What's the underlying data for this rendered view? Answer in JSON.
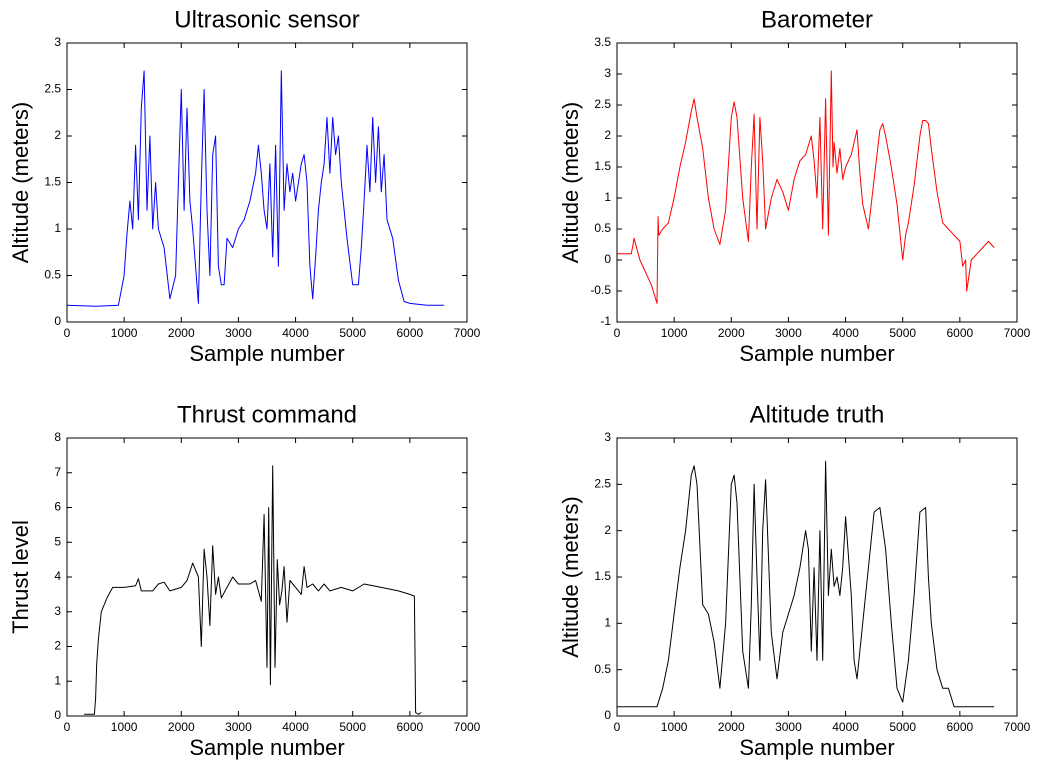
{
  "chart_data": [
    {
      "type": "line",
      "title": "Ultrasonic sensor",
      "xlabel": "Sample number",
      "ylabel": "Altitude (meters)",
      "xlim": [
        0,
        7000
      ],
      "xticks": [
        0,
        1000,
        2000,
        3000,
        4000,
        5000,
        6000,
        7000
      ],
      "ylim": [
        0,
        3
      ],
      "yticks": [
        0,
        0.5,
        1,
        1.5,
        2,
        2.5,
        3
      ],
      "x": [
        0,
        500,
        900,
        1000,
        1050,
        1100,
        1150,
        1200,
        1250,
        1300,
        1350,
        1400,
        1450,
        1500,
        1550,
        1600,
        1700,
        1800,
        1900,
        1950,
        2000,
        2050,
        2100,
        2150,
        2200,
        2300,
        2350,
        2400,
        2450,
        2500,
        2550,
        2600,
        2650,
        2700,
        2750,
        2800,
        2900,
        3000,
        3100,
        3200,
        3300,
        3350,
        3400,
        3450,
        3500,
        3550,
        3600,
        3650,
        3700,
        3750,
        3800,
        3850,
        3900,
        3950,
        4000,
        4100,
        4150,
        4200,
        4250,
        4300,
        4350,
        4400,
        4450,
        4500,
        4550,
        4600,
        4650,
        4700,
        4750,
        4800,
        4900,
        5000,
        5100,
        5150,
        5200,
        5250,
        5300,
        5350,
        5400,
        5450,
        5500,
        5550,
        5600,
        5700,
        5800,
        5900,
        6000,
        6300,
        6600
      ],
      "series": [
        {
          "color": "#0000ff",
          "values": [
            0.18,
            0.17,
            0.18,
            0.5,
            0.95,
            1.3,
            1.0,
            1.9,
            1.1,
            2.3,
            2.7,
            1.2,
            2.0,
            1.0,
            1.5,
            1.0,
            0.8,
            0.25,
            0.5,
            1.5,
            2.5,
            1.2,
            2.3,
            1.3,
            1.0,
            0.2,
            1.5,
            2.5,
            1.2,
            0.5,
            1.8,
            2.0,
            0.6,
            0.4,
            0.4,
            0.9,
            0.8,
            1.0,
            1.1,
            1.3,
            1.6,
            1.9,
            1.6,
            1.2,
            1.0,
            1.7,
            0.7,
            1.9,
            0.6,
            2.7,
            1.2,
            1.7,
            1.4,
            1.6,
            1.3,
            1.7,
            1.8,
            1.5,
            0.6,
            0.25,
            0.7,
            1.2,
            1.5,
            1.7,
            2.2,
            1.6,
            2.2,
            1.8,
            2.0,
            1.5,
            0.9,
            0.4,
            0.4,
            0.8,
            1.3,
            1.9,
            1.4,
            2.2,
            1.5,
            2.1,
            1.4,
            1.8,
            1.1,
            0.9,
            0.45,
            0.22,
            0.2,
            0.18,
            0.18
          ]
        }
      ]
    },
    {
      "type": "line",
      "title": "Barometer",
      "xlabel": "Sample number",
      "ylabel": "Altitude (meters)",
      "xlim": [
        0,
        7000
      ],
      "xticks": [
        0,
        1000,
        2000,
        3000,
        4000,
        5000,
        6000,
        7000
      ],
      "ylim": [
        -1,
        3.5
      ],
      "yticks": [
        -1,
        -0.5,
        0,
        0.5,
        1,
        1.5,
        2,
        2.5,
        3,
        3.5
      ],
      "x": [
        0,
        250,
        300,
        400,
        500,
        600,
        700,
        720,
        730,
        800,
        900,
        1000,
        1100,
        1200,
        1300,
        1350,
        1400,
        1500,
        1600,
        1700,
        1800,
        1900,
        2000,
        2050,
        2100,
        2200,
        2300,
        2350,
        2400,
        2450,
        2500,
        2550,
        2600,
        2700,
        2800,
        2900,
        3000,
        3100,
        3200,
        3300,
        3400,
        3450,
        3500,
        3550,
        3600,
        3650,
        3700,
        3750,
        3780,
        3800,
        3850,
        3900,
        3950,
        4000,
        4100,
        4200,
        4250,
        4300,
        4400,
        4500,
        4600,
        4650,
        4700,
        4800,
        4900,
        5000,
        5050,
        5100,
        5200,
        5300,
        5350,
        5400,
        5450,
        5500,
        5600,
        5700,
        5800,
        5900,
        6000,
        6050,
        6100,
        6120,
        6200,
        6300,
        6400,
        6500,
        6600
      ],
      "series": [
        {
          "color": "#ff0000",
          "values": [
            0.1,
            0.1,
            0.35,
            0.0,
            -0.2,
            -0.4,
            -0.7,
            0.7,
            0.4,
            0.5,
            0.6,
            1.0,
            1.5,
            1.9,
            2.4,
            2.6,
            2.3,
            1.8,
            1.0,
            0.5,
            0.25,
            0.8,
            2.3,
            2.55,
            2.3,
            1.0,
            0.3,
            1.5,
            2.35,
            0.5,
            2.3,
            1.6,
            0.5,
            1.0,
            1.3,
            1.1,
            0.8,
            1.3,
            1.6,
            1.7,
            2.0,
            1.6,
            1.0,
            2.3,
            0.5,
            2.6,
            0.4,
            3.05,
            1.5,
            1.9,
            1.4,
            1.8,
            1.3,
            1.5,
            1.7,
            2.1,
            1.4,
            0.9,
            0.5,
            1.3,
            2.1,
            2.2,
            2.0,
            1.5,
            0.9,
            0.0,
            0.4,
            0.6,
            1.2,
            2.0,
            2.25,
            2.25,
            2.2,
            1.8,
            1.1,
            0.6,
            0.5,
            0.4,
            0.3,
            -0.1,
            0.0,
            -0.5,
            0.0,
            0.1,
            0.2,
            0.3,
            0.2
          ]
        }
      ]
    },
    {
      "type": "line",
      "title": "Thrust command",
      "xlabel": "Sample number",
      "ylabel": "Thrust level",
      "xlim": [
        0,
        7000
      ],
      "xticks": [
        0,
        1000,
        2000,
        3000,
        4000,
        5000,
        6000,
        7000
      ],
      "ylim": [
        0,
        8
      ],
      "yticks": [
        0,
        1,
        2,
        3,
        4,
        5,
        6,
        7,
        8
      ],
      "x": [
        300,
        480,
        500,
        520,
        550,
        600,
        700,
        800,
        900,
        1000,
        1200,
        1250,
        1300,
        1500,
        1600,
        1700,
        1800,
        2000,
        2100,
        2200,
        2300,
        2350,
        2400,
        2450,
        2500,
        2550,
        2600,
        2650,
        2700,
        2800,
        2900,
        3000,
        3200,
        3300,
        3400,
        3450,
        3500,
        3530,
        3560,
        3600,
        3640,
        3680,
        3720,
        3760,
        3800,
        3850,
        3900,
        4000,
        4100,
        4150,
        4200,
        4300,
        4400,
        4500,
        4600,
        4800,
        5000,
        5200,
        5500,
        5800,
        6000,
        6080,
        6100,
        6150,
        6200
      ],
      "series": [
        {
          "color": "#000000",
          "values": [
            0.05,
            0.05,
            0.5,
            1.5,
            2.2,
            3.0,
            3.4,
            3.7,
            3.7,
            3.7,
            3.75,
            3.95,
            3.6,
            3.6,
            3.8,
            3.85,
            3.6,
            3.7,
            3.9,
            4.4,
            4.0,
            2.0,
            4.8,
            4.0,
            2.6,
            4.9,
            3.5,
            4.0,
            3.4,
            3.7,
            4.0,
            3.8,
            3.8,
            3.9,
            3.3,
            5.8,
            1.4,
            6.0,
            0.9,
            7.2,
            1.4,
            4.5,
            3.2,
            3.6,
            4.3,
            2.7,
            3.9,
            3.7,
            3.5,
            4.3,
            3.7,
            3.8,
            3.6,
            3.8,
            3.6,
            3.7,
            3.6,
            3.8,
            3.7,
            3.6,
            3.5,
            3.45,
            0.1,
            0.05,
            0.1
          ]
        }
      ]
    },
    {
      "type": "line",
      "title": "Altitude truth",
      "xlabel": "Sample number",
      "ylabel": "Altitude (meters)",
      "xlim": [
        0,
        7000
      ],
      "xticks": [
        0,
        1000,
        2000,
        3000,
        4000,
        5000,
        6000,
        7000
      ],
      "ylim": [
        0,
        3
      ],
      "yticks": [
        0,
        0.5,
        1,
        1.5,
        2,
        2.5,
        3
      ],
      "x": [
        0,
        700,
        800,
        900,
        1000,
        1100,
        1200,
        1300,
        1350,
        1400,
        1500,
        1600,
        1700,
        1800,
        1900,
        2000,
        2050,
        2100,
        2200,
        2300,
        2350,
        2400,
        2450,
        2500,
        2550,
        2600,
        2700,
        2800,
        2900,
        3000,
        3100,
        3200,
        3300,
        3350,
        3400,
        3450,
        3500,
        3550,
        3600,
        3650,
        3700,
        3750,
        3800,
        3850,
        3900,
        3950,
        4000,
        4100,
        4150,
        4200,
        4300,
        4400,
        4500,
        4600,
        4700,
        4800,
        4900,
        5000,
        5100,
        5200,
        5300,
        5400,
        5450,
        5500,
        5600,
        5700,
        5800,
        5850,
        5900,
        6000,
        6100,
        6600
      ],
      "series": [
        {
          "color": "#000000",
          "values": [
            0.1,
            0.1,
            0.3,
            0.6,
            1.1,
            1.6,
            2.0,
            2.6,
            2.7,
            2.5,
            1.2,
            1.1,
            0.8,
            0.3,
            1.0,
            2.5,
            2.6,
            2.3,
            0.7,
            0.3,
            1.2,
            2.5,
            1.5,
            0.6,
            2.0,
            2.55,
            0.9,
            0.4,
            0.9,
            1.1,
            1.3,
            1.6,
            2.0,
            1.8,
            0.7,
            1.6,
            0.6,
            2.0,
            0.6,
            2.75,
            1.3,
            1.8,
            1.4,
            1.5,
            1.3,
            1.6,
            2.15,
            1.3,
            0.6,
            0.4,
            1.0,
            1.6,
            2.2,
            2.25,
            1.8,
            1.0,
            0.3,
            0.15,
            0.6,
            1.3,
            2.2,
            2.25,
            1.5,
            1.0,
            0.5,
            0.3,
            0.3,
            0.2,
            0.1,
            0.1,
            0.1,
            0.1
          ]
        }
      ]
    }
  ]
}
